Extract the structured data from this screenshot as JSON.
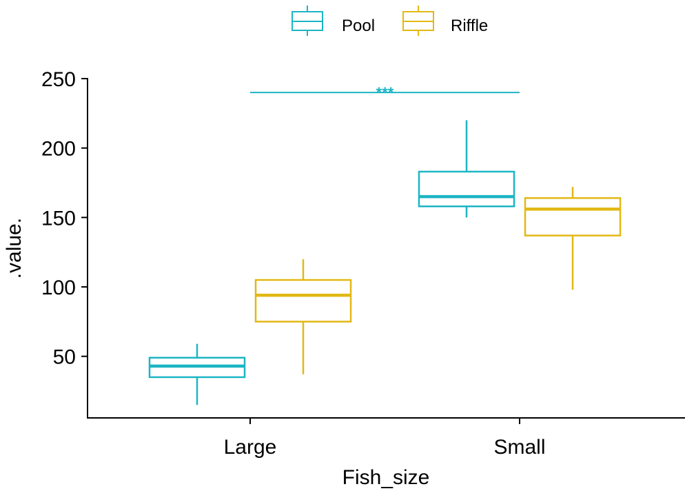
{
  "chart_data": {
    "type": "boxplot",
    "xlabel": "Fish_size",
    "ylabel": ".value.",
    "categories": [
      "Large",
      "Small"
    ],
    "ylim": [
      0,
      250
    ],
    "yticks": [
      50,
      100,
      150,
      200,
      250
    ],
    "grid": false,
    "legend": {
      "position": "top",
      "entries": [
        "Pool",
        "Riffle"
      ]
    },
    "series": [
      {
        "name": "Pool",
        "color": "#1cb5c4",
        "boxes": [
          {
            "category": "Large",
            "min": 15,
            "q1": 35,
            "median": 43,
            "q3": 49,
            "max": 59
          },
          {
            "category": "Small",
            "min": 150,
            "q1": 158,
            "median": 165,
            "q3": 183,
            "max": 220
          }
        ]
      },
      {
        "name": "Riffle",
        "color": "#e2b813",
        "boxes": [
          {
            "category": "Large",
            "min": 37,
            "q1": 75,
            "median": 94,
            "q3": 105,
            "max": 120
          },
          {
            "category": "Small",
            "min": 98,
            "q1": 137,
            "median": 156,
            "q3": 164,
            "max": 172
          }
        ]
      }
    ],
    "annotations": [
      {
        "type": "significance-bracket",
        "from": "Large",
        "to": "Small",
        "y": 240,
        "label": "***",
        "color": "#1cb5c4"
      }
    ]
  }
}
